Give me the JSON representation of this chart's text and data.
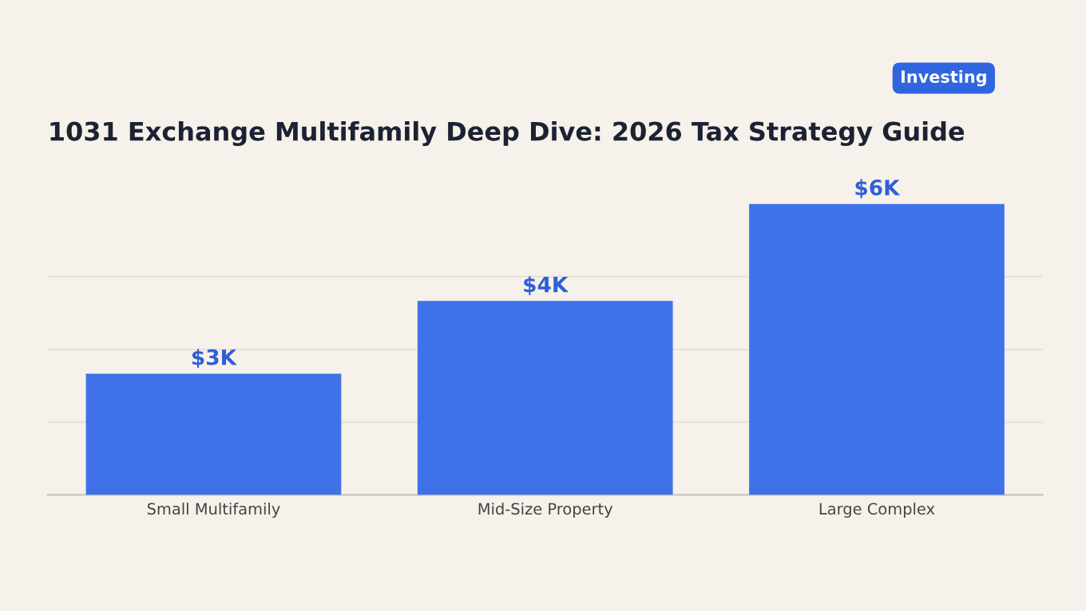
{
  "chart_data": {
    "type": "bar",
    "title": "1031 Exchange Multifamily Deep Dive: 2026 Tax Strategy Guide",
    "annotations": [
      "Investing"
    ],
    "categories": [
      "Small Multifamily",
      "Mid-Size Property",
      "Large Complex"
    ],
    "values": [
      2.5,
      4,
      6
    ],
    "value_labels": [
      "$3K",
      "$4K",
      "$6K"
    ],
    "color": "#3f72e8",
    "yticks": [
      {
        "value": 1.5,
        "label": null
      },
      {
        "value": 3,
        "label": null
      },
      {
        "value": 4.5,
        "label": null
      }
    ],
    "grid": "y",
    "tick_labels": "x"
  }
}
